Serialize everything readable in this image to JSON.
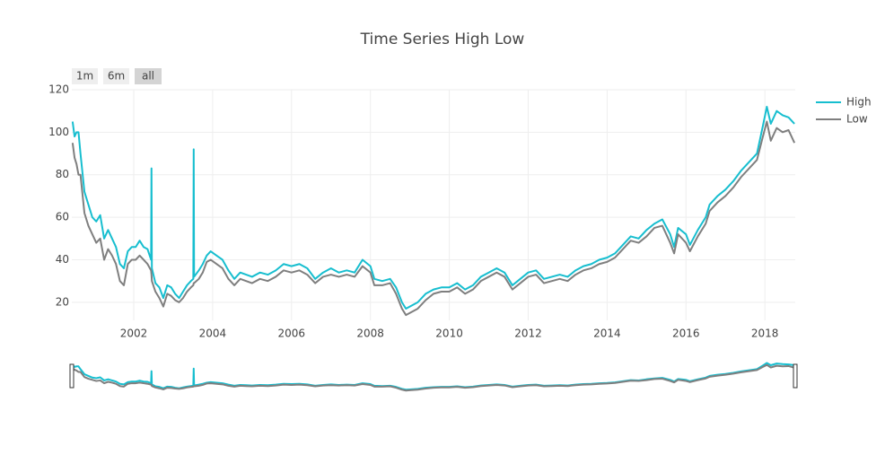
{
  "chart_data": {
    "type": "line",
    "title": "Time Series High Low",
    "range_buttons": [
      "1m",
      "6m",
      "all"
    ],
    "x": [
      2000.45,
      2000.5,
      2000.55,
      2000.6,
      2000.65,
      2000.75,
      2000.85,
      2000.95,
      2001.05,
      2001.15,
      2001.25,
      2001.35,
      2001.45,
      2001.55,
      2001.65,
      2001.75,
      2001.85,
      2001.95,
      2002.05,
      2002.15,
      2002.25,
      2002.35,
      2002.44,
      2002.45,
      2002.46,
      2002.55,
      2002.65,
      2002.75,
      2002.85,
      2002.95,
      2003.05,
      2003.15,
      2003.25,
      2003.35,
      2003.45,
      2003.51,
      2003.52,
      2003.53,
      2003.65,
      2003.75,
      2003.85,
      2003.95,
      2004.1,
      2004.25,
      2004.4,
      2004.55,
      2004.7,
      2004.85,
      2005,
      2005.2,
      2005.4,
      2005.6,
      2005.8,
      2006,
      2006.2,
      2006.4,
      2006.6,
      2006.8,
      2007,
      2007.2,
      2007.4,
      2007.6,
      2007.8,
      2008,
      2008.1,
      2008.3,
      2008.5,
      2008.65,
      2008.8,
      2008.9,
      2009,
      2009.2,
      2009.4,
      2009.6,
      2009.8,
      2010,
      2010.2,
      2010.4,
      2010.6,
      2010.8,
      2011,
      2011.2,
      2011.4,
      2011.6,
      2011.8,
      2012,
      2012.2,
      2012.4,
      2012.6,
      2012.8,
      2013,
      2013.2,
      2013.4,
      2013.6,
      2013.8,
      2014,
      2014.2,
      2014.4,
      2014.6,
      2014.8,
      2015,
      2015.2,
      2015.4,
      2015.6,
      2015.7,
      2015.8,
      2016,
      2016.1,
      2016.3,
      2016.5,
      2016.6,
      2016.8,
      2017,
      2017.2,
      2017.4,
      2017.6,
      2017.8,
      2017.95,
      2018.05,
      2018.15,
      2018.3,
      2018.45,
      2018.6,
      2018.75
    ],
    "series": [
      {
        "name": "High",
        "color": "#17becf",
        "values": [
          105,
          98,
          100,
          100,
          90,
          72,
          66,
          60,
          58,
          61,
          50,
          54,
          50,
          46,
          38,
          36,
          44,
          46,
          46,
          49,
          46,
          45,
          40,
          83,
          36,
          29,
          27,
          22,
          28,
          27,
          24,
          22,
          25,
          28,
          30,
          31,
          92,
          32,
          35,
          38,
          42,
          44,
          42,
          40,
          35,
          31,
          34,
          33,
          32,
          34,
          33,
          35,
          38,
          37,
          38,
          36,
          31,
          34,
          36,
          34,
          35,
          34,
          40,
          37,
          31,
          30,
          31,
          27,
          20,
          17,
          18,
          20,
          24,
          26,
          27,
          27,
          29,
          26,
          28,
          32,
          34,
          36,
          34,
          28,
          31,
          34,
          35,
          31,
          32,
          33,
          32,
          35,
          37,
          38,
          40,
          41,
          43,
          47,
          51,
          50,
          54,
          57,
          59,
          52,
          46,
          55,
          52,
          47,
          54,
          60,
          66,
          70,
          73,
          77,
          82,
          86,
          90,
          103,
          112,
          104,
          110,
          108,
          107,
          104
        ]
      },
      {
        "name": "Low",
        "color": "#7f7f7f",
        "values": [
          95,
          88,
          85,
          80,
          80,
          62,
          56,
          52,
          48,
          50,
          40,
          45,
          42,
          38,
          30,
          28,
          38,
          40,
          40,
          42,
          40,
          38,
          35,
          33,
          30,
          25,
          22,
          18,
          24,
          23,
          21,
          20,
          22,
          25,
          27,
          28,
          29,
          29,
          31,
          34,
          39,
          40,
          38,
          36,
          31,
          28,
          31,
          30,
          29,
          31,
          30,
          32,
          35,
          34,
          35,
          33,
          29,
          32,
          33,
          32,
          33,
          32,
          37,
          34,
          28,
          28,
          29,
          24,
          17,
          14,
          15,
          17,
          21,
          24,
          25,
          25,
          27,
          24,
          26,
          30,
          32,
          34,
          32,
          26,
          29,
          32,
          33,
          29,
          30,
          31,
          30,
          33,
          35,
          36,
          38,
          39,
          41,
          45,
          49,
          48,
          51,
          55,
          56,
          48,
          43,
          52,
          48,
          44,
          51,
          57,
          63,
          67,
          70,
          74,
          79,
          83,
          87,
          98,
          105,
          96,
          102,
          100,
          101,
          95
        ]
      }
    ],
    "xlim": [
      2000.43,
      2018.77
    ],
    "xticks": [
      2002,
      2004,
      2006,
      2008,
      2010,
      2012,
      2014,
      2016,
      2018
    ],
    "ylim": [
      11.5,
      120
    ],
    "yticks": [
      20,
      40,
      60,
      80,
      100,
      120
    ],
    "grid": true,
    "legend": "right"
  }
}
